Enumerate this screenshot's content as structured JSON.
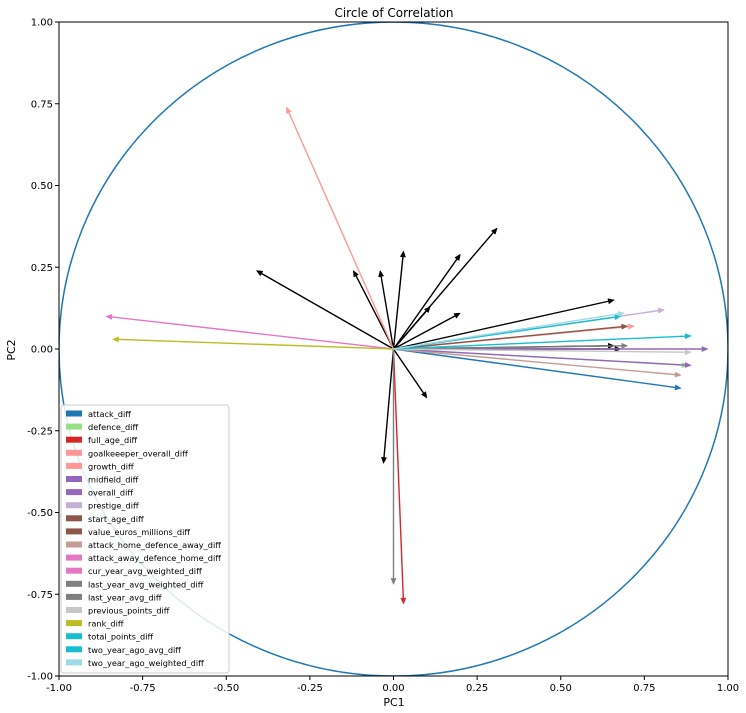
{
  "chart_data": {
    "type": "scatter",
    "title": "Circle of Correlation",
    "xlabel": "PC1",
    "ylabel": "PC2",
    "xlim": [
      -1.0,
      1.0
    ],
    "ylim": [
      -1.0,
      1.0
    ],
    "xticks": [
      "-1.00",
      "-0.75",
      "-0.50",
      "-0.25",
      "0.00",
      "0.25",
      "0.50",
      "0.75",
      "1.00"
    ],
    "yticks": [
      "-1.00",
      "-0.75",
      "-0.50",
      "-0.25",
      "0.00",
      "0.25",
      "0.50",
      "0.75",
      "1.00"
    ],
    "grid": false,
    "circle": {
      "radius": 1.0,
      "color": "#1f77b4"
    },
    "legend_position": "lower-left",
    "legend": [
      {
        "label": "attack_diff",
        "color": "#1f77b4"
      },
      {
        "label": "defence_diff",
        "color": "#98df8a"
      },
      {
        "label": "full_age_diff",
        "color": "#d62728"
      },
      {
        "label": "goalkeeeper_overall_diff",
        "color": "#ff9896"
      },
      {
        "label": "growth_diff",
        "color": "#ff9896"
      },
      {
        "label": "midfield_diff",
        "color": "#9467bd"
      },
      {
        "label": "overall_diff",
        "color": "#9467bd"
      },
      {
        "label": "prestige_diff",
        "color": "#c5b0d5"
      },
      {
        "label": "start_age_diff",
        "color": "#8c564b"
      },
      {
        "label": "value_euros_millions_diff",
        "color": "#8c564b"
      },
      {
        "label": "attack_home_defence_away_diff",
        "color": "#c49c94"
      },
      {
        "label": "attack_away_defence_home_diff",
        "color": "#e377c2"
      },
      {
        "label": "cur_year_avg_weighted_diff",
        "color": "#e377c2"
      },
      {
        "label": "last_year_avg_weighted_diff",
        "color": "#7f7f7f"
      },
      {
        "label": "last_year_avg_diff",
        "color": "#7f7f7f"
      },
      {
        "label": "previous_points_diff",
        "color": "#c7c7c7"
      },
      {
        "label": "rank_diff",
        "color": "#bcbd22"
      },
      {
        "label": "total_points_diff",
        "color": "#17becf"
      },
      {
        "label": "two_year_ago_avg_diff",
        "color": "#17becf"
      },
      {
        "label": "two_year_ago_weighted_diff",
        "color": "#9edae5"
      }
    ],
    "arrows_colored": [
      {
        "x": 0.86,
        "y": -0.12,
        "color": "#1f77b4"
      },
      {
        "x": 0.88,
        "y": -0.05,
        "color": "#98df8a"
      },
      {
        "x": 0.03,
        "y": -0.78,
        "color": "#d62728"
      },
      {
        "x": -0.32,
        "y": 0.74,
        "color": "#ff9896"
      },
      {
        "x": 0.72,
        "y": 0.07,
        "color": "#ff9896"
      },
      {
        "x": 0.89,
        "y": -0.05,
        "color": "#9467bd"
      },
      {
        "x": 0.94,
        "y": -0.0,
        "color": "#9467bd"
      },
      {
        "x": 0.81,
        "y": 0.12,
        "color": "#c5b0d5"
      },
      {
        "x": 0.7,
        "y": 0.07,
        "color": "#8c564b"
      },
      {
        "x": 0.86,
        "y": -0.08,
        "color": "#c49c94"
      },
      {
        "x": -0.86,
        "y": 0.1,
        "color": "#e377c2"
      },
      {
        "x": 0.7,
        "y": 0.01,
        "color": "#7f7f7f"
      },
      {
        "x": 0.0,
        "y": -0.72,
        "color": "#7f7f7f"
      },
      {
        "x": 0.89,
        "y": -0.01,
        "color": "#c7c7c7"
      },
      {
        "x": -0.84,
        "y": 0.03,
        "color": "#bcbd22"
      },
      {
        "x": 0.89,
        "y": 0.04,
        "color": "#17becf"
      },
      {
        "x": 0.68,
        "y": 0.1,
        "color": "#17becf"
      },
      {
        "x": 0.69,
        "y": 0.11,
        "color": "#9edae5"
      }
    ],
    "arrows_black": [
      {
        "x": -0.41,
        "y": 0.24
      },
      {
        "x": -0.12,
        "y": 0.24
      },
      {
        "x": -0.04,
        "y": 0.24
      },
      {
        "x": 0.03,
        "y": 0.3
      },
      {
        "x": 0.2,
        "y": 0.29
      },
      {
        "x": 0.31,
        "y": 0.37
      },
      {
        "x": 0.11,
        "y": 0.13
      },
      {
        "x": 0.2,
        "y": 0.11
      },
      {
        "x": 0.66,
        "y": 0.15
      },
      {
        "x": 0.66,
        "y": 0.01
      },
      {
        "x": 0.68,
        "y": 0.0
      },
      {
        "x": 0.1,
        "y": -0.15
      },
      {
        "x": -0.03,
        "y": -0.35
      }
    ]
  }
}
